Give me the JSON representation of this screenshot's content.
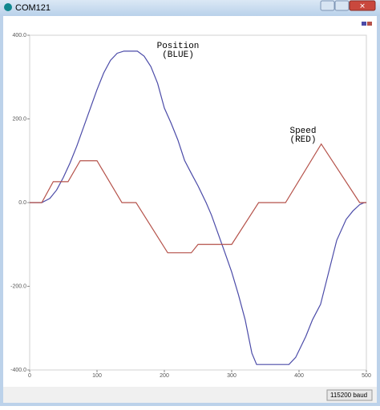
{
  "window": {
    "title": "COM121",
    "baud": "115200 baud"
  },
  "chart_data": {
    "type": "line",
    "annotations": [
      {
        "text": "Position",
        "sub": "(BLUE)"
      },
      {
        "text": "Speed",
        "sub": "(RED)"
      }
    ],
    "series": [
      {
        "color": "#4b4ba8",
        "x": [
          0,
          18,
          30,
          40,
          50,
          60,
          70,
          80,
          90,
          100,
          110,
          120,
          130,
          140,
          150,
          160,
          170,
          180,
          190,
          200,
          210,
          220,
          230,
          240,
          250,
          262,
          270,
          280,
          290,
          300,
          310,
          320,
          325,
          330,
          337,
          385,
          395,
          410,
          420,
          432,
          445,
          456,
          470,
          480,
          490,
          497,
          500
        ],
        "values": [
          0,
          0,
          10,
          30,
          60,
          95,
          135,
          180,
          225,
          270,
          310,
          340,
          357,
          362,
          362,
          362,
          350,
          325,
          285,
          226,
          190,
          150,
          101,
          70,
          40,
          0,
          -30,
          -75,
          -120,
          -166,
          -220,
          -280,
          -320,
          -360,
          -387,
          -387,
          -370,
          -320,
          -280,
          -243,
          -160,
          -90,
          -40,
          -20,
          -5,
          0,
          0
        ]
      },
      {
        "color": "#b5524a",
        "x": [
          0,
          18,
          35,
          57,
          75,
          100,
          137,
          158,
          205,
          240,
          250,
          300,
          340,
          380,
          433,
          490,
          500
        ],
        "values": [
          0,
          0,
          50,
          50,
          100,
          100,
          0,
          0,
          -120,
          -120,
          -100,
          -100,
          0,
          0,
          140,
          0,
          0
        ]
      }
    ],
    "xlim": [
      0,
      500
    ],
    "xticks": [
      0,
      100,
      200,
      300,
      400,
      500
    ],
    "ylim": [
      -400,
      400
    ],
    "yticks": [
      {
        "value": 400,
        "label": "400.0"
      },
      {
        "value": 200,
        "label": "200.0"
      },
      {
        "value": 0,
        "label": "0.0"
      },
      {
        "value": -200,
        "label": "-200.0"
      },
      {
        "value": -400,
        "label": "-400.0"
      }
    ]
  }
}
